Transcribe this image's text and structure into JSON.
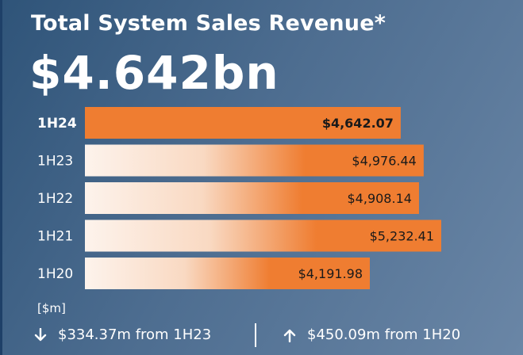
{
  "header": {
    "title": "Total System Sales Revenue*",
    "headline_value": "$4.642bn"
  },
  "chart_data": {
    "type": "bar",
    "orientation": "horizontal",
    "categories": [
      "1H24",
      "1H23",
      "1H22",
      "1H21",
      "1H20"
    ],
    "values": [
      4642.07,
      4976.44,
      4908.14,
      5232.41,
      4191.98
    ],
    "value_labels": [
      "$4,642.07",
      "$4,976.44",
      "$4,908.14",
      "$5,232.41",
      "$4,191.98"
    ],
    "highlight_category": "1H24",
    "unit_label": "[$m]",
    "colors": {
      "bar": "#ef7d31",
      "bar_fade": "#fdf3ec",
      "background": "#4a6a8c",
      "text_dark": "#1a1a1a"
    }
  },
  "footer": {
    "change_1": {
      "icon": "arrow-down-icon",
      "value": "$334.37m",
      "text": " from 1H23"
    },
    "change_2": {
      "icon": "arrow-up-icon",
      "value": "$450.09m",
      "text": " from 1H20"
    }
  }
}
